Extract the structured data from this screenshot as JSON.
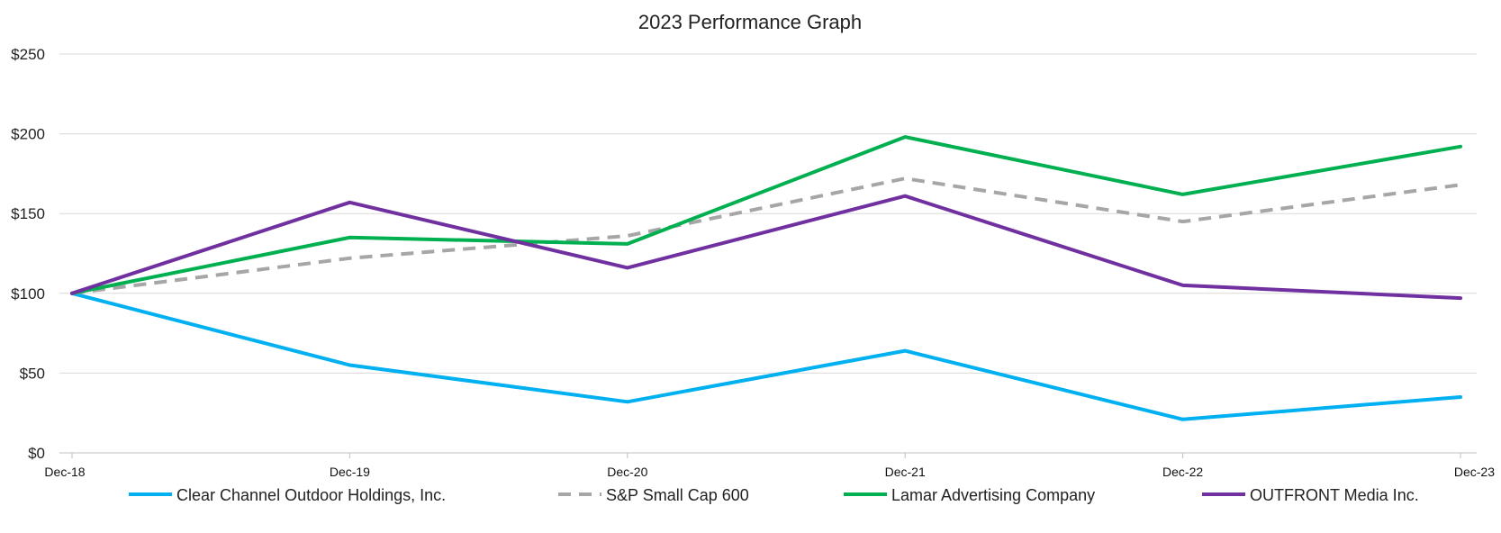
{
  "chart_data": {
    "type": "line",
    "title": "2023 Performance Graph",
    "xlabel": "",
    "ylabel": "",
    "categories": [
      "Dec-18",
      "Dec-19",
      "Dec-20",
      "Dec-21",
      "Dec-22",
      "Dec-23"
    ],
    "ylim": [
      0,
      250
    ],
    "yticks": [
      0,
      50,
      100,
      150,
      200,
      250
    ],
    "ytick_labels": [
      "$0",
      "$50",
      "$100",
      "$150",
      "$200",
      "$250"
    ],
    "grid": true,
    "legend_position": "bottom",
    "series": [
      {
        "name": "Clear Channel Outdoor Holdings, Inc.",
        "color": "#00b0f0",
        "dash": "solid",
        "values": [
          100,
          55,
          32,
          64,
          21,
          35
        ]
      },
      {
        "name": "S&P Small Cap 600",
        "color": "#a6a6a6",
        "dash": "dashed",
        "values": [
          100,
          122,
          136,
          172,
          145,
          168
        ]
      },
      {
        "name": "Lamar Advertising Company",
        "color": "#00b050",
        "dash": "solid",
        "values": [
          100,
          135,
          131,
          198,
          162,
          192
        ]
      },
      {
        "name": "OUTFRONT Media Inc.",
        "color": "#7030a0",
        "dash": "solid",
        "values": [
          100,
          157,
          116,
          161,
          105,
          97
        ]
      }
    ]
  }
}
